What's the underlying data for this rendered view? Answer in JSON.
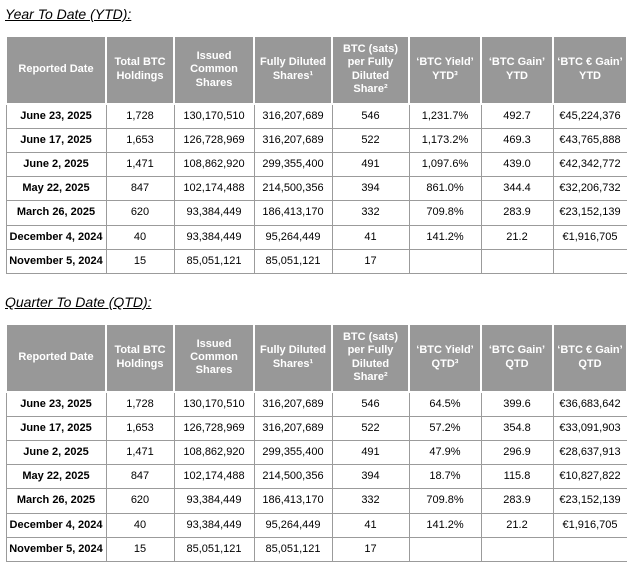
{
  "page": {
    "sections": [
      {
        "title": "Year To Date (YTD):",
        "columns": [
          "Reported Date",
          "Total BTC Holdings",
          "Issued Common Shares",
          "Fully Diluted Shares¹",
          "BTC (sats) per Fully Diluted Share²",
          "‘BTC Yield’ YTD³",
          "‘BTC Gain’ YTD",
          "‘BTC € Gain’ YTD"
        ],
        "rows": [
          [
            "June 23, 2025",
            "1,728",
            "130,170,510",
            "316,207,689",
            "546",
            "1,231.7%",
            "492.7",
            "€45,224,376"
          ],
          [
            "June 17, 2025",
            "1,653",
            "126,728,969",
            "316,207,689",
            "522",
            "1,173.2%",
            "469.3",
            "€43,765,888"
          ],
          [
            "June 2, 2025",
            "1,471",
            "108,862,920",
            "299,355,400",
            "491",
            "1,097.6%",
            "439.0",
            "€42,342,772"
          ],
          [
            "May 22, 2025",
            "847",
            "102,174,488",
            "214,500,356",
            "394",
            "861.0%",
            "344.4",
            "€32,206,732"
          ],
          [
            "March 26, 2025",
            "620",
            "93,384,449",
            "186,413,170",
            "332",
            "709.8%",
            "283.9",
            "€23,152,139"
          ],
          [
            "December 4, 2024",
            "40",
            "93,384,449",
            "95,264,449",
            "41",
            "141.2%",
            "21.2",
            "€1,916,705"
          ],
          [
            "November 5, 2024",
            "15",
            "85,051,121",
            "85,051,121",
            "17",
            "",
            "",
            ""
          ]
        ]
      },
      {
        "title": "Quarter To Date (QTD):",
        "columns": [
          "Reported Date",
          "Total BTC Holdings",
          "Issued Common Shares",
          "Fully Diluted Shares¹",
          "BTC (sats) per Fully Diluted Share²",
          "‘BTC Yield’ QTD³",
          "‘BTC Gain’ QTD",
          "‘BTC € Gain’ QTD"
        ],
        "rows": [
          [
            "June 23, 2025",
            "1,728",
            "130,170,510",
            "316,207,689",
            "546",
            "64.5%",
            "399.6",
            "€36,683,642"
          ],
          [
            "June 17, 2025",
            "1,653",
            "126,728,969",
            "316,207,689",
            "522",
            "57.2%",
            "354.8",
            "€33,091,903"
          ],
          [
            "June 2, 2025",
            "1,471",
            "108,862,920",
            "299,355,400",
            "491",
            "47.9%",
            "296.9",
            "€28,637,913"
          ],
          [
            "May 22, 2025",
            "847",
            "102,174,488",
            "214,500,356",
            "394",
            "18.7%",
            "115.8",
            "€10,827,822"
          ],
          [
            "March 26, 2025",
            "620",
            "93,384,449",
            "186,413,170",
            "332",
            "709.8%",
            "283.9",
            "€23,152,139"
          ],
          [
            "December 4, 2024",
            "40",
            "93,384,449",
            "95,264,449",
            "41",
            "141.2%",
            "21.2",
            "€1,916,705"
          ],
          [
            "November 5, 2024",
            "15",
            "85,051,121",
            "85,051,121",
            "17",
            "",
            "",
            ""
          ]
        ]
      }
    ],
    "colors": {
      "header_bg": "#989898",
      "header_text": "#ffffff",
      "cell_border": "#9b9b9b",
      "body_text": "#000000"
    }
  }
}
